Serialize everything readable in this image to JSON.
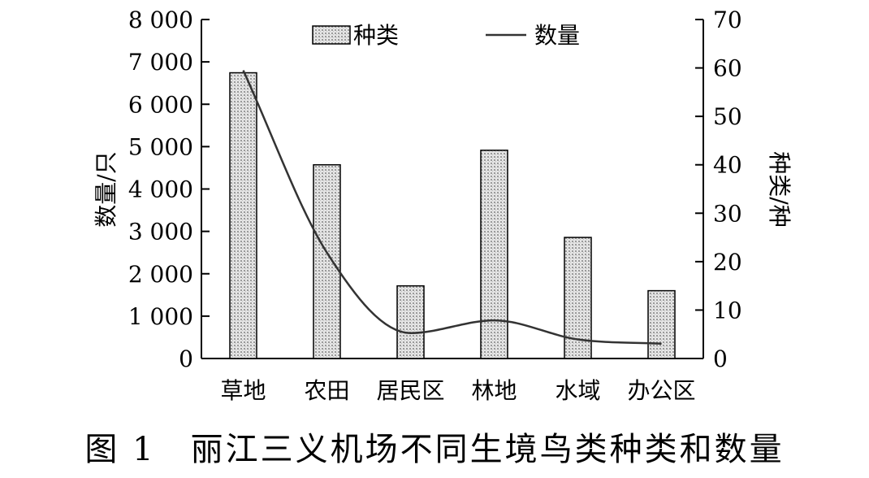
{
  "caption": "图 1　丽江三义机场不同生境鸟类种类和数量",
  "chart_data": {
    "type": "bar+line",
    "categories": [
      "草地",
      "农田",
      "居民区",
      "林地",
      "水域",
      "办公区"
    ],
    "series": [
      {
        "name": "种类",
        "type": "bar",
        "axis": "right",
        "values": [
          59,
          40,
          15,
          43,
          25,
          14
        ]
      },
      {
        "name": "数量",
        "type": "line",
        "axis": "left",
        "values": [
          6800,
          2500,
          600,
          900,
          450,
          350
        ]
      }
    ],
    "ylabel_left": "数量/只",
    "ylabel_right": "种类/种",
    "ylim_left": [
      0,
      8000
    ],
    "ylim_right": [
      0,
      70
    ],
    "yticks_left": [
      "0",
      "1 000",
      "2 000",
      "3 000",
      "4 000",
      "5 000",
      "6 000",
      "7 000",
      "8 000"
    ],
    "yticks_right": [
      "0",
      "10",
      "20",
      "30",
      "40",
      "50",
      "60",
      "70"
    ],
    "legend_position": "top",
    "grid": false
  }
}
